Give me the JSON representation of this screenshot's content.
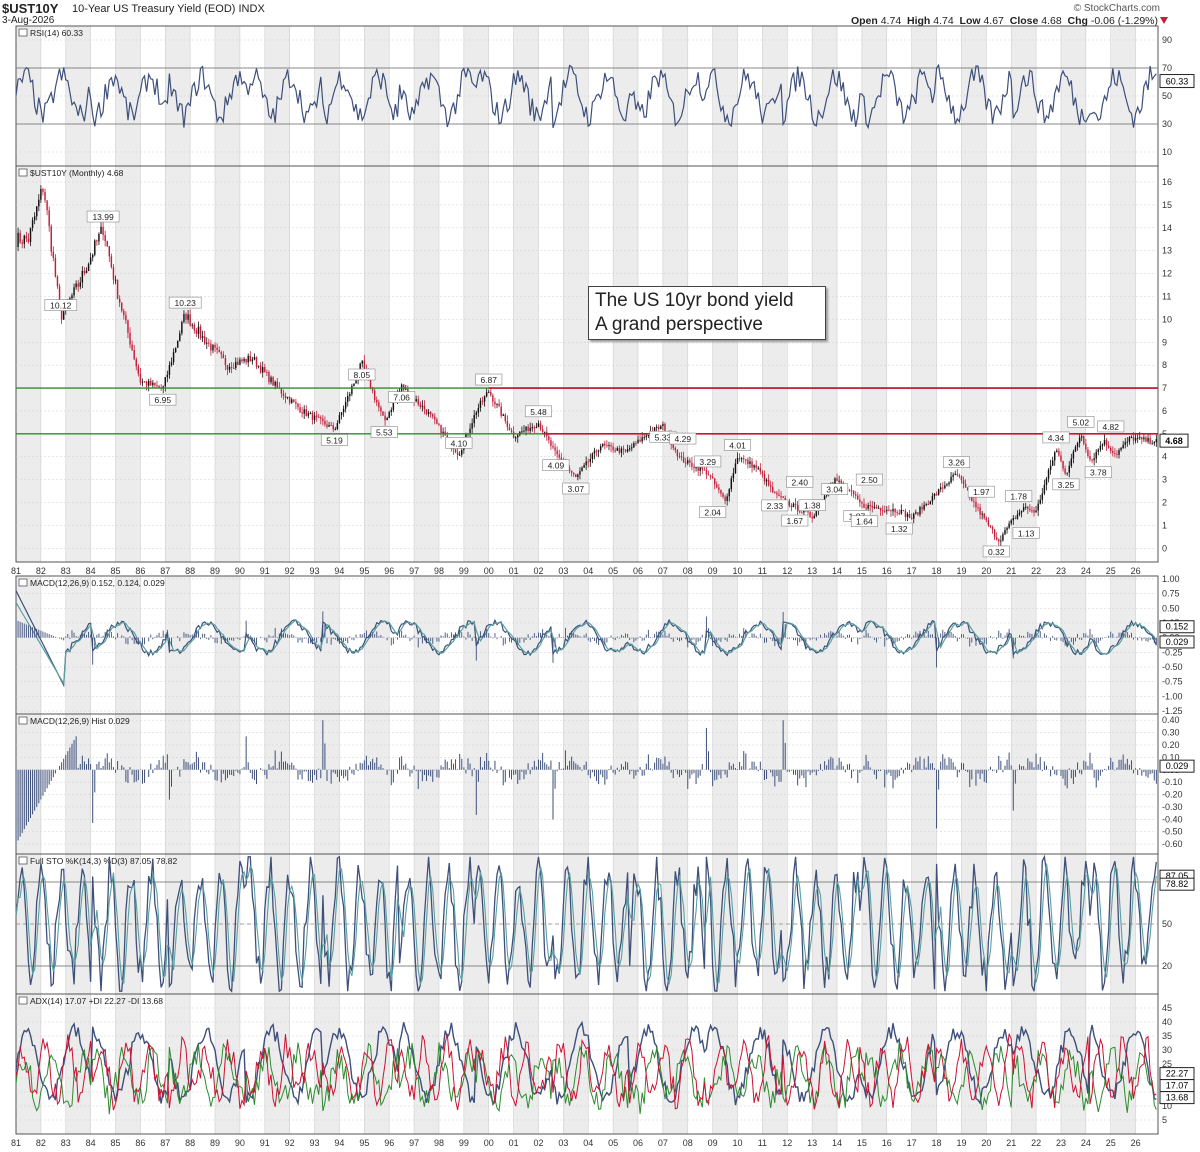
{
  "header": {
    "symbol": "$UST10Y",
    "name": "10-Year US Treasury Yield (EOD)",
    "exchange": "INDX",
    "date": "3-Aug-2026",
    "brand": "© StockCharts.com",
    "ohlc": {
      "open_label": "Open",
      "open": "4.74",
      "high_label": "High",
      "high": "4.74",
      "low_label": "Low",
      "low": "4.67",
      "close_label": "Close",
      "close": "4.68",
      "chg_label": "Chg",
      "chg": "-0.06 (-1.29%)"
    }
  },
  "annotation": {
    "line1": "The US 10yr bond yield",
    "line2": "A grand perspective"
  },
  "colors": {
    "up": "#111111",
    "down": "#c41e3a",
    "line": "#3d4f7a",
    "signal": "#5aa0a0",
    "green": "#2e8b2e",
    "red": "#cc1133",
    "hist": "#3d4f7a",
    "grid": "#cfcfcf",
    "band": "#ececec"
  },
  "x_axis": {
    "ticks": [
      "81",
      "82",
      "83",
      "84",
      "85",
      "86",
      "87",
      "88",
      "89",
      "90",
      "91",
      "92",
      "93",
      "94",
      "95",
      "96",
      "97",
      "98",
      "99",
      "00",
      "01",
      "02",
      "03",
      "04",
      "05",
      "06",
      "07",
      "08",
      "09",
      "10",
      "11",
      "12",
      "13",
      "14",
      "15",
      "16",
      "17",
      "18",
      "19",
      "20",
      "21",
      "22",
      "23",
      "24",
      "25",
      "26"
    ]
  },
  "panels": {
    "rsi": {
      "title": "RSI(14) 60.33",
      "ticks": [
        "90",
        "70",
        "50",
        "30",
        "10"
      ],
      "current": "60.33"
    },
    "price": {
      "title": "$UST10Y (Monthly) 4.68",
      "ticks": [
        "16",
        "15",
        "14",
        "13",
        "12",
        "11",
        "10",
        "9",
        "8",
        "7",
        "6",
        "5",
        "4",
        "3",
        "2",
        "1",
        "0"
      ],
      "current": "4.68",
      "hlines": [
        {
          "value": 7,
          "color": "red"
        },
        {
          "value": 5,
          "color": "red"
        }
      ]
    },
    "macd": {
      "title": "MACD(12,26,9) 0.152, 0.124, 0.029",
      "ticks": [
        "1.00",
        "0.75",
        "0.50",
        "0.25",
        "0.00",
        "-0.25",
        "-0.50",
        "-0.75",
        "-1.00",
        "-1.25"
      ],
      "labels": [
        "0.152",
        "0.029"
      ]
    },
    "hist": {
      "title": "MACD(12,26,9) Hist 0.029",
      "ticks": [
        "0.40",
        "0.30",
        "0.20",
        "0.10",
        "0.00",
        "-0.10",
        "-0.20",
        "-0.30",
        "-0.40",
        "-0.50",
        "-0.60"
      ],
      "current": "0.029"
    },
    "sto": {
      "title": "Full STO %K(14,3) %D(3) 87.05, 78.82",
      "ticks": [
        "80",
        "50",
        "20"
      ],
      "labels": [
        "87.05",
        "78.82"
      ]
    },
    "adx": {
      "title": "ADX(14) 17.07 +DI 22.27 -DI 13.68",
      "ticks": [
        "45",
        "40",
        "35",
        "30",
        "25",
        "20",
        "15",
        "10",
        "5"
      ],
      "labels": [
        "22.27",
        "17.07",
        "13.68"
      ]
    }
  },
  "chart_data": {
    "type": "line",
    "title": "$UST10Y (Monthly)",
    "x": [
      1981.5,
      1982.1,
      1982.8,
      1983.5,
      1984.5,
      1985.0,
      1986.0,
      1986.9,
      1987.8,
      1988.5,
      1989.5,
      1990.5,
      1991.5,
      1992.5,
      1993.8,
      1994.9,
      1995.8,
      1996.5,
      1997.5,
      1998.8,
      1999.5,
      2000.0,
      2001.0,
      2002.0,
      2002.7,
      2003.5,
      2004.5,
      2005.5,
      2006.5,
      2007.0,
      2007.7,
      2008.8,
      2009.5,
      2010.0,
      2010.8,
      2011.5,
      2012.5,
      2013.0,
      2013.9,
      2014.5,
      2015.0,
      2016.5,
      2017.0,
      2018.8,
      2019.5,
      2020.5,
      2021.0,
      2021.5,
      2022.0,
      2022.8,
      2023.2,
      2023.8,
      2024.2,
      2024.7,
      2025.2,
      2025.8,
      2026.6
    ],
    "y": [
      13.5,
      15.84,
      10.12,
      11.5,
      13.99,
      11.5,
      7.3,
      6.95,
      10.23,
      9.2,
      8.0,
      8.3,
      7.0,
      6.0,
      5.19,
      8.05,
      5.53,
      7.06,
      6.0,
      4.1,
      6.0,
      6.87,
      4.9,
      5.48,
      4.09,
      3.07,
      4.5,
      4.2,
      5.1,
      5.33,
      3.9,
      3.29,
      2.04,
      4.01,
      3.5,
      2.33,
      1.67,
      1.38,
      3.04,
      2.5,
      1.87,
      1.64,
      1.32,
      3.26,
      1.97,
      0.32,
      1.13,
      1.78,
      1.6,
      4.34,
      3.25,
      5.02,
      3.78,
      4.7,
      4.1,
      4.82,
      4.68
    ],
    "y_label_unit": "%",
    "ylim": [
      0,
      16.5
    ],
    "xlim": [
      1981,
      2026.9
    ],
    "peak_trough_labels": [
      {
        "x": 1982.2,
        "y": 15.84,
        "label": ""
      },
      {
        "x": 1982.8,
        "y": 10.12,
        "label": "10.12"
      },
      {
        "x": 1984.5,
        "y": 13.99,
        "label": "13.99"
      },
      {
        "x": 1986.9,
        "y": 6.95,
        "label": "6.95"
      },
      {
        "x": 1987.8,
        "y": 10.23,
        "label": "10.23"
      },
      {
        "x": 1993.8,
        "y": 5.19,
        "label": "5.19"
      },
      {
        "x": 1994.9,
        "y": 8.05,
        "label": "8.05"
      },
      {
        "x": 1995.8,
        "y": 5.53,
        "label": "5.53"
      },
      {
        "x": 1996.5,
        "y": 7.06,
        "label": "7.06"
      },
      {
        "x": 1998.8,
        "y": 4.1,
        "label": "4.10"
      },
      {
        "x": 2000.0,
        "y": 6.87,
        "label": "6.87"
      },
      {
        "x": 2002.0,
        "y": 5.48,
        "label": "5.48"
      },
      {
        "x": 2002.7,
        "y": 4.09,
        "label": "4.09"
      },
      {
        "x": 2003.5,
        "y": 3.07,
        "label": "3.07"
      },
      {
        "x": 2007.0,
        "y": 5.33,
        "label": "5.33"
      },
      {
        "x": 2007.8,
        "y": 4.29,
        "label": "4.29"
      },
      {
        "x": 2008.8,
        "y": 3.29,
        "label": "3.29"
      },
      {
        "x": 2009.0,
        "y": 2.04,
        "label": "2.04"
      },
      {
        "x": 2010.0,
        "y": 4.01,
        "label": "4.01"
      },
      {
        "x": 2011.5,
        "y": 2.33,
        "label": "2.33"
      },
      {
        "x": 2012.5,
        "y": 2.4,
        "label": "2.40"
      },
      {
        "x": 2012.3,
        "y": 1.67,
        "label": "1.67"
      },
      {
        "x": 2013.0,
        "y": 1.38,
        "label": "1.38"
      },
      {
        "x": 2013.9,
        "y": 3.04,
        "label": "3.04"
      },
      {
        "x": 2015.3,
        "y": 2.5,
        "label": "2.50"
      },
      {
        "x": 2014.8,
        "y": 1.87,
        "label": "1.87"
      },
      {
        "x": 2015.1,
        "y": 1.64,
        "label": "1.64"
      },
      {
        "x": 2016.5,
        "y": 1.32,
        "label": "1.32"
      },
      {
        "x": 2018.8,
        "y": 3.26,
        "label": "3.26"
      },
      {
        "x": 2019.8,
        "y": 1.97,
        "label": "1.97"
      },
      {
        "x": 2020.4,
        "y": 0.32,
        "label": "0.32"
      },
      {
        "x": 2021.3,
        "y": 1.78,
        "label": "1.78"
      },
      {
        "x": 2021.6,
        "y": 1.13,
        "label": "1.13"
      },
      {
        "x": 2022.8,
        "y": 4.34,
        "label": "4.34"
      },
      {
        "x": 2023.2,
        "y": 3.25,
        "label": "3.25"
      },
      {
        "x": 2023.8,
        "y": 5.02,
        "label": "5.02"
      },
      {
        "x": 2024.5,
        "y": 3.78,
        "label": "3.78"
      },
      {
        "x": 2025.0,
        "y": 4.82,
        "label": "4.82"
      }
    ]
  }
}
